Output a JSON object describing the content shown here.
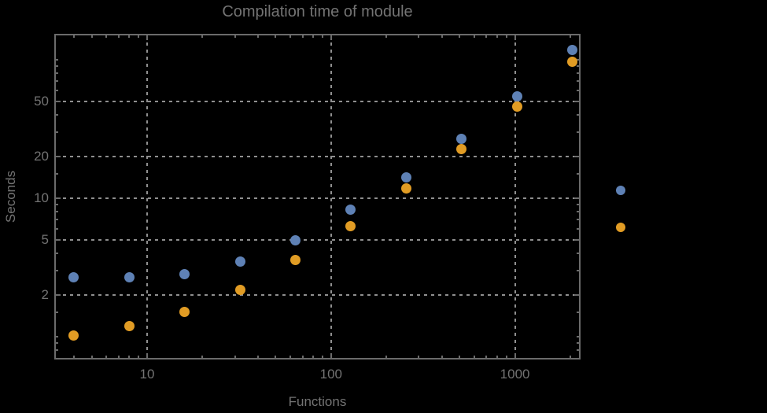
{
  "chart_data": {
    "type": "scatter",
    "title": "Compilation time of module",
    "xlabel": "Functions",
    "ylabel": "Seconds",
    "x_scale": "log",
    "y_scale": "log",
    "grid": true,
    "x_range": [
      3.1,
      2280
    ],
    "y_range": [
      0.68,
      155
    ],
    "x_ticks": [
      10,
      100,
      1000
    ],
    "x_tick_labels": [
      "10",
      "100",
      "1000"
    ],
    "x_minor_ticks": [
      4,
      5,
      6,
      7,
      8,
      9,
      20,
      30,
      40,
      50,
      60,
      70,
      80,
      90,
      200,
      300,
      400,
      500,
      600,
      700,
      800,
      900,
      2000
    ],
    "y_ticks": [
      2,
      5,
      10,
      20,
      50
    ],
    "y_tick_labels": [
      "2",
      "5",
      "10",
      "20",
      "50"
    ],
    "y_minor_ticks": [
      0.7,
      0.8,
      0.9,
      1,
      1.5,
      3,
      4,
      6,
      7,
      8,
      9,
      15,
      30,
      40,
      60,
      70,
      80,
      90,
      100,
      150
    ],
    "series": [
      {
        "name": "blue-series",
        "color": "#5e81b5",
        "x": [
          4,
          8,
          16,
          32,
          64,
          128,
          256,
          512,
          1024,
          2048
        ],
        "y": [
          2.7,
          2.7,
          2.85,
          3.5,
          5.0,
          8.3,
          14.2,
          26.8,
          54,
          117
        ]
      },
      {
        "name": "orange-series",
        "color": "#e19c24",
        "x": [
          4,
          8,
          16,
          32,
          64,
          128,
          256,
          512,
          1024,
          2048
        ],
        "y": [
          1.02,
          1.2,
          1.52,
          2.17,
          3.6,
          6.3,
          11.8,
          22.5,
          46,
          96
        ]
      }
    ],
    "legend": {
      "position": "right-outside",
      "entries": [
        {
          "label": "",
          "color": "#5e81b5"
        },
        {
          "label": "",
          "color": "#e19c24"
        }
      ]
    }
  }
}
